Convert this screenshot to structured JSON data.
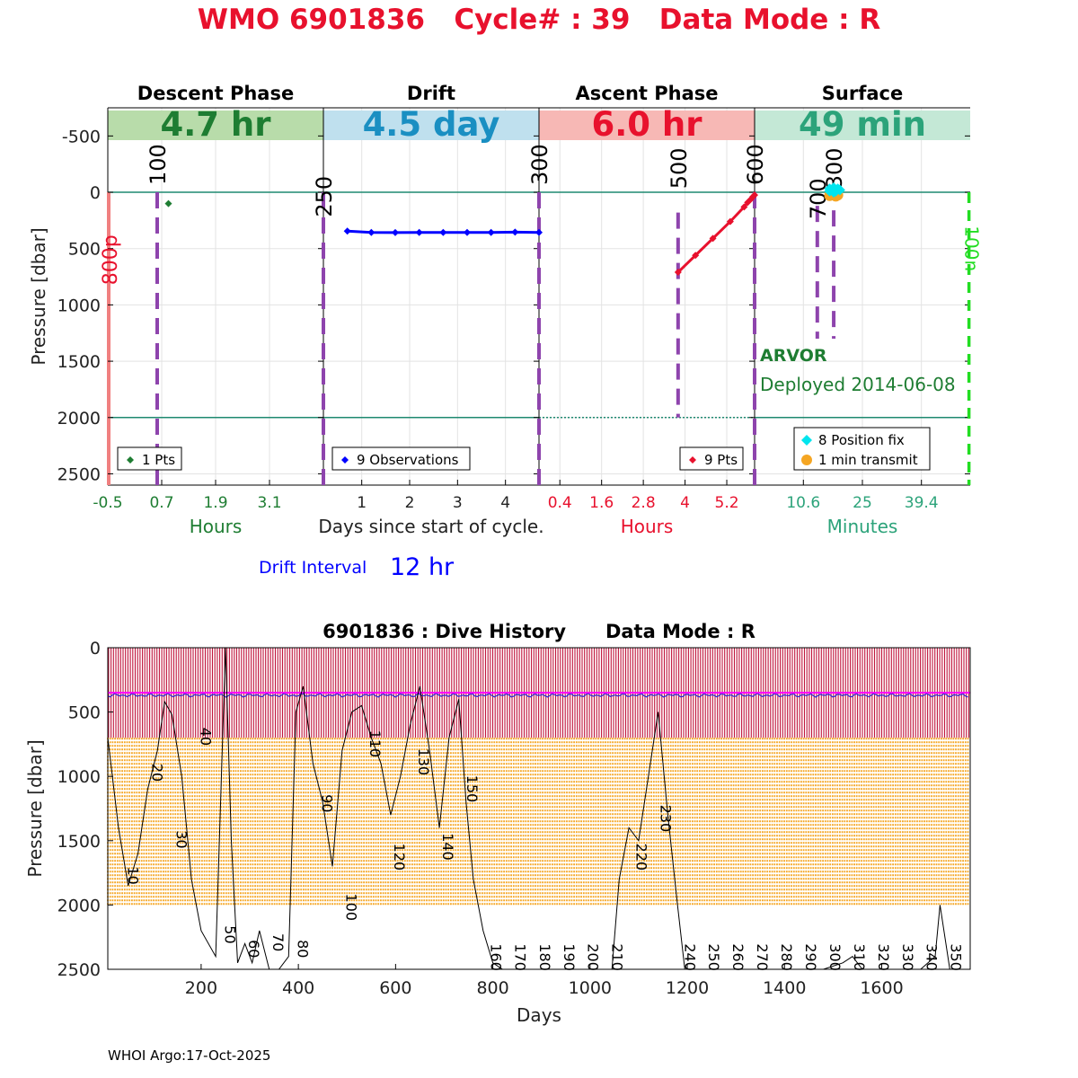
{
  "header": {
    "title": "WMO 6901836   Cycle# : 39   Data Mode : R"
  },
  "footer": {
    "text": "WHOI Argo:17-Oct-2025"
  },
  "colors": {
    "title": "#e8112d",
    "descent": "#1e7d32",
    "drift": "#0000ff",
    "ascent": "#e8112d",
    "surface": "#2ca37a",
    "purple": "#8e44ad",
    "orange": "#f5a623",
    "cyan": "#00e5ee",
    "magenta": "#ff00ff",
    "darkred": "#c0143c"
  },
  "chart_data": [
    {
      "type": "line",
      "ylabel": "Pressure [dbar]",
      "ylim": [
        2600,
        -750
      ],
      "yticks": [
        "-500",
        "0",
        "500",
        "1000",
        "1500",
        "2000",
        "2500"
      ],
      "ytick_values": [
        -500,
        0,
        500,
        1000,
        1500,
        2000,
        2500
      ],
      "panels": [
        {
          "name": "Descent Phase",
          "duration": "4.7 hr",
          "xlim": [
            -0.5,
            4.3
          ],
          "xticks": [
            "-0.5",
            "0.7",
            "1.9",
            "3.1"
          ],
          "xtick_values": [
            -0.5,
            0.7,
            1.9,
            3.1
          ],
          "xlabel": "Hours",
          "series": [
            {
              "name": "descent",
              "x": [
                0.85
              ],
              "y": [
                100
              ]
            }
          ],
          "legend": "1 Pts"
        },
        {
          "name": "Drift",
          "duration": "4.5 day",
          "xlim": [
            0.2,
            4.7
          ],
          "xticks": [
            "1",
            "2",
            "3",
            "4"
          ],
          "xtick_values": [
            1,
            2,
            3,
            4
          ],
          "xlabel": "Days since start of cycle.",
          "series": [
            {
              "name": "drift",
              "x": [
                0.7,
                1.2,
                1.7,
                2.2,
                2.7,
                3.2,
                3.7,
                4.2,
                4.7
              ],
              "y": [
                345,
                357,
                358,
                357,
                357,
                357,
                357,
                354,
                357
              ]
            }
          ],
          "legend": "9 Observations"
        },
        {
          "name": "Ascent Phase",
          "duration": "6.0 hr",
          "xlim": [
            -0.2,
            6.0
          ],
          "xticks": [
            "0.4",
            "1.6",
            "2.8",
            "4",
            "5.2"
          ],
          "xtick_values": [
            0.4,
            1.6,
            2.8,
            4.0,
            5.2
          ],
          "xlabel": "Hours",
          "series": [
            {
              "name": "ascent",
              "x": [
                3.8,
                4.3,
                4.8,
                5.3,
                5.7,
                5.8,
                5.9,
                5.95,
                6.0
              ],
              "y": [
                710,
                560,
                410,
                260,
                130,
                90,
                60,
                40,
                25
              ]
            }
          ],
          "legend": "9 Pts"
        },
        {
          "name": "Surface",
          "duration": "49 min",
          "xlim": [
            -1.3,
            51.3
          ],
          "xticks": [
            "10.6",
            "25",
            "39.4"
          ],
          "xtick_values": [
            10.6,
            25,
            39.4
          ],
          "xlabel": "Minutes",
          "series": [
            {
              "name": "position fix",
              "x": [
                17,
                17,
                17.5,
                18,
                18.5,
                19,
                19.5,
                18
              ],
              "y": [
                -30,
                -10,
                -20,
                -40,
                -10,
                -30,
                -20,
                0
              ]
            },
            {
              "name": "transmit",
              "x": [
                18,
                17,
                19,
                18.5,
                17.5
              ],
              "y": [
                20,
                30,
                25,
                35,
                20
              ]
            }
          ],
          "legend": [
            "8 Position fix",
            "1 min transmit"
          ],
          "float_type": "ARVOR",
          "deployed": "Deployed 2014-06-08"
        }
      ],
      "markers": [
        {
          "label": "100",
          "panel": 0,
          "x": 0.6
        },
        {
          "label": "250",
          "panel": 1,
          "x": 0.2
        },
        {
          "label": "300",
          "panel": 1,
          "x": 4.7
        },
        {
          "label": "500",
          "panel": 2,
          "x": 3.8
        },
        {
          "label": "600",
          "panel": 2,
          "x": 6.0
        },
        {
          "label": "700",
          "panel": 3,
          "x": 14
        },
        {
          "label": "300",
          "panel": 3,
          "x": 18
        },
        {
          "label": "800p",
          "panel": 0,
          "x": -0.5
        },
        {
          "label": "100n",
          "panel": 3,
          "x": 51
        }
      ],
      "drift_interval_label": "Drift Interval",
      "drift_interval_value": "12 hr"
    },
    {
      "type": "line",
      "title": "6901836 : Dive History      Data Mode : R",
      "xlabel": "Days",
      "ylabel": "Pressure [dbar]",
      "xlim": [
        8,
        1782
      ],
      "ylim": [
        2500,
        0
      ],
      "xticks": [
        "200",
        "400",
        "600",
        "800",
        "1000",
        "1200",
        "1400",
        "1600"
      ],
      "xtick_values": [
        200,
        400,
        600,
        800,
        1000,
        1200,
        1400,
        1600
      ],
      "yticks": [
        "0",
        "500",
        "1000",
        "1500",
        "2000",
        "2500"
      ],
      "ytick_values": [
        0,
        500,
        1000,
        1500,
        2000,
        2500
      ],
      "cycle_interval_days": 4.97,
      "cycle_count": 357,
      "park_pressure": 350,
      "ascent_start_pressure": 700,
      "profile_pressure": 2000,
      "cycle_labels": [
        {
          "label": "10",
          "x": 42,
          "y": 1700
        },
        {
          "label": "20",
          "x": 92,
          "y": 900
        },
        {
          "label": "30",
          "x": 142,
          "y": 1420
        },
        {
          "label": "40",
          "x": 192,
          "y": 620
        },
        {
          "label": "50",
          "x": 242,
          "y": 2160
        },
        {
          "label": "60",
          "x": 291,
          "y": 2270
        },
        {
          "label": "70",
          "x": 341,
          "y": 2220
        },
        {
          "label": "80",
          "x": 391,
          "y": 2270
        },
        {
          "label": "90",
          "x": 441,
          "y": 1140
        },
        {
          "label": "100",
          "x": 491,
          "y": 1910
        },
        {
          "label": "110",
          "x": 540,
          "y": 640
        },
        {
          "label": "120",
          "x": 590,
          "y": 1520
        },
        {
          "label": "130",
          "x": 640,
          "y": 780
        },
        {
          "label": "140",
          "x": 690,
          "y": 1440
        },
        {
          "label": "150",
          "x": 740,
          "y": 990
        },
        {
          "label": "160",
          "x": 789,
          "y": 2300
        },
        {
          "label": "170",
          "x": 839,
          "y": 2300
        },
        {
          "label": "180",
          "x": 889,
          "y": 2300
        },
        {
          "label": "190",
          "x": 939,
          "y": 2300
        },
        {
          "label": "200",
          "x": 988,
          "y": 2300
        },
        {
          "label": "210",
          "x": 1038,
          "y": 2300
        },
        {
          "label": "220",
          "x": 1088,
          "y": 1520
        },
        {
          "label": "230",
          "x": 1138,
          "y": 1220
        },
        {
          "label": "240",
          "x": 1188,
          "y": 2300
        },
        {
          "label": "250",
          "x": 1237,
          "y": 2300
        },
        {
          "label": "260",
          "x": 1287,
          "y": 2300
        },
        {
          "label": "270",
          "x": 1337,
          "y": 2300
        },
        {
          "label": "280",
          "x": 1387,
          "y": 2300
        },
        {
          "label": "290",
          "x": 1436,
          "y": 2300
        },
        {
          "label": "300",
          "x": 1486,
          "y": 2300
        },
        {
          "label": "310",
          "x": 1536,
          "y": 2300
        },
        {
          "label": "320",
          "x": 1586,
          "y": 2300
        },
        {
          "label": "330",
          "x": 1636,
          "y": 2300
        },
        {
          "label": "340",
          "x": 1685,
          "y": 2300
        },
        {
          "label": "350",
          "x": 1735,
          "y": 2300
        }
      ],
      "bathymetry": {
        "x": [
          8,
          30,
          50,
          70,
          90,
          110,
          125,
          140,
          160,
          180,
          200,
          230,
          250,
          262,
          275,
          290,
          305,
          320,
          340,
          360,
          380,
          395,
          410,
          430,
          450,
          470,
          490,
          510,
          530,
          550,
          570,
          590,
          610,
          630,
          650,
          670,
          690,
          710,
          730,
          745,
          760,
          780,
          800,
          820,
          840,
          860,
          880,
          890,
          895,
          920,
          940,
          960,
          980,
          1000,
          1020,
          1030,
          1045,
          1060,
          1080,
          1100,
          1120,
          1140,
          1160,
          1180,
          1195,
          1210,
          1240,
          1270,
          1300,
          1325,
          1335,
          1360,
          1400,
          1440,
          1480,
          1520,
          1540,
          1560,
          1600,
          1640,
          1680,
          1710,
          1720,
          1740,
          1760,
          1782
        ],
        "y": [
          700,
          1400,
          1850,
          1600,
          1100,
          800,
          420,
          520,
          1000,
          1800,
          2200,
          2400,
          0,
          1500,
          2450,
          2300,
          2450,
          2200,
          2500,
          2500,
          2400,
          500,
          300,
          900,
          1200,
          1700,
          800,
          500,
          450,
          700,
          900,
          1300,
          1000,
          600,
          300,
          800,
          1400,
          700,
          400,
          1200,
          1800,
          2200,
          2450,
          2500,
          2500,
          2500,
          2500,
          2500,
          2500,
          2500,
          2500,
          2500,
          2500,
          2500,
          2500,
          2500,
          2500,
          1800,
          1400,
          1500,
          1000,
          500,
          1300,
          2000,
          2500,
          2500,
          2500,
          2500,
          2500,
          2500,
          2500,
          2500,
          2500,
          2500,
          2500,
          2450,
          2400,
          2500,
          2500,
          2500,
          2500,
          2400,
          2000,
          2500,
          2500,
          2500
        ]
      }
    }
  ]
}
